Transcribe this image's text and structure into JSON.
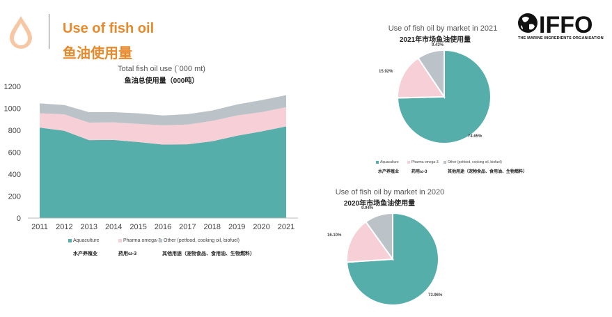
{
  "header": {
    "title_en": "Use of fish oil",
    "title_zh": "鱼油使用量",
    "logo_text": "THE MARINE INGREDIENTS ORGANISATION",
    "logo_wordmark": "IFFO"
  },
  "colors": {
    "aquaculture": "#56aeaa",
    "pharma": "#f6cfd7",
    "other": "#bcc3c8",
    "title_orange": "#e88a2c"
  },
  "legend": {
    "items": [
      {
        "label": "Aquaculture",
        "label_zh": "水产养殖业"
      },
      {
        "label": "Pharma omega-3",
        "label_zh": "药用ω-3"
      },
      {
        "label": "Other (petfood, cooking oil, biofuel)",
        "label_zh": "其他用途（宠物食品、食用油、生物燃料）"
      }
    ]
  },
  "chart_data": [
    {
      "type": "area",
      "stacked": true,
      "title": "Total fish oil use (`000 mt)",
      "subtitle": "鱼油总使用量（000吨）",
      "categories": [
        "2011",
        "2012",
        "2013",
        "2014",
        "2015",
        "2016",
        "2017",
        "2018",
        "2019",
        "2020",
        "2021"
      ],
      "ylim": [
        0,
        1200
      ],
      "yticks": [
        0,
        200,
        400,
        600,
        800,
        1000,
        1200
      ],
      "series": [
        {
          "name": "Aquaculture",
          "values": [
            825,
            795,
            710,
            712,
            693,
            670,
            672,
            700,
            750,
            790,
            835
          ]
        },
        {
          "name": "Pharma omega-3",
          "values": [
            130,
            150,
            160,
            160,
            165,
            175,
            180,
            185,
            185,
            175,
            175
          ]
        },
        {
          "name": "Other (petfood, cooking oil, biofuel)",
          "values": [
            90,
            85,
            95,
            93,
            97,
            90,
            95,
            95,
            100,
            110,
            110
          ]
        }
      ],
      "grid": false,
      "legend_position": "bottom"
    },
    {
      "type": "pie",
      "title": "Use of fish oil by market in 2021",
      "subtitle": "2021年市场鱼油使用量",
      "slices": [
        {
          "name": "Aquaculture",
          "value": 74.65,
          "label": "74.65%"
        },
        {
          "name": "Pharma omega-3",
          "value": 15.92,
          "label": "15.92%"
        },
        {
          "name": "Other (petfood, cooking oil, biofuel)",
          "value": 9.43,
          "label": "9.43%"
        }
      ]
    },
    {
      "type": "pie",
      "title": "Use of fish oil by market in 2020",
      "subtitle": "2020年市场鱼油使用量",
      "slices": [
        {
          "name": "Aquaculture",
          "value": 73.96,
          "label": "73.96%"
        },
        {
          "name": "Pharma omega-3",
          "value": 16.1,
          "label": "16.10%"
        },
        {
          "name": "Other (petfood, cooking oil, biofuel)",
          "value": 9.94,
          "label": "9.94%"
        }
      ]
    }
  ]
}
